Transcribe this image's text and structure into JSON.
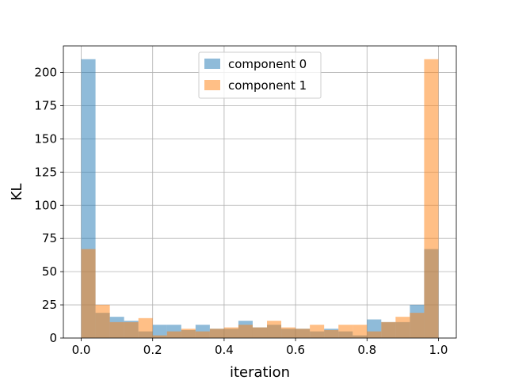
{
  "chart_data": {
    "type": "bar",
    "xlabel": "iteration",
    "ylabel": "KL",
    "xlim": [
      -0.05,
      1.05
    ],
    "ylim": [
      0,
      220
    ],
    "xticks": [
      "0.0",
      "0.2",
      "0.4",
      "0.6",
      "0.8",
      "1.0"
    ],
    "yticks": [
      "0",
      "25",
      "50",
      "75",
      "100",
      "125",
      "150",
      "175",
      "200"
    ],
    "grid": true,
    "legend_position": "top-center",
    "bin_width": 0.04,
    "bin_starts": [
      0.0,
      0.04,
      0.08,
      0.12,
      0.16,
      0.2,
      0.24,
      0.28,
      0.32,
      0.36,
      0.4,
      0.44,
      0.48,
      0.52,
      0.56,
      0.6,
      0.64,
      0.68,
      0.72,
      0.76,
      0.8,
      0.84,
      0.88,
      0.92,
      0.96
    ],
    "series": [
      {
        "name": "component 0",
        "color": "#1f77b4",
        "values": [
          210,
          19,
          16,
          13,
          5,
          10,
          10,
          6,
          10,
          7,
          7,
          13,
          8,
          10,
          7,
          7,
          5,
          7,
          5,
          2,
          14,
          12,
          12,
          25,
          67
        ]
      },
      {
        "name": "component 1",
        "color": "#ff7f0e",
        "values": [
          67,
          25,
          12,
          12,
          15,
          2,
          5,
          7,
          5,
          7,
          8,
          10,
          8,
          13,
          8,
          7,
          10,
          6,
          10,
          10,
          5,
          12,
          16,
          19,
          210
        ]
      }
    ]
  }
}
